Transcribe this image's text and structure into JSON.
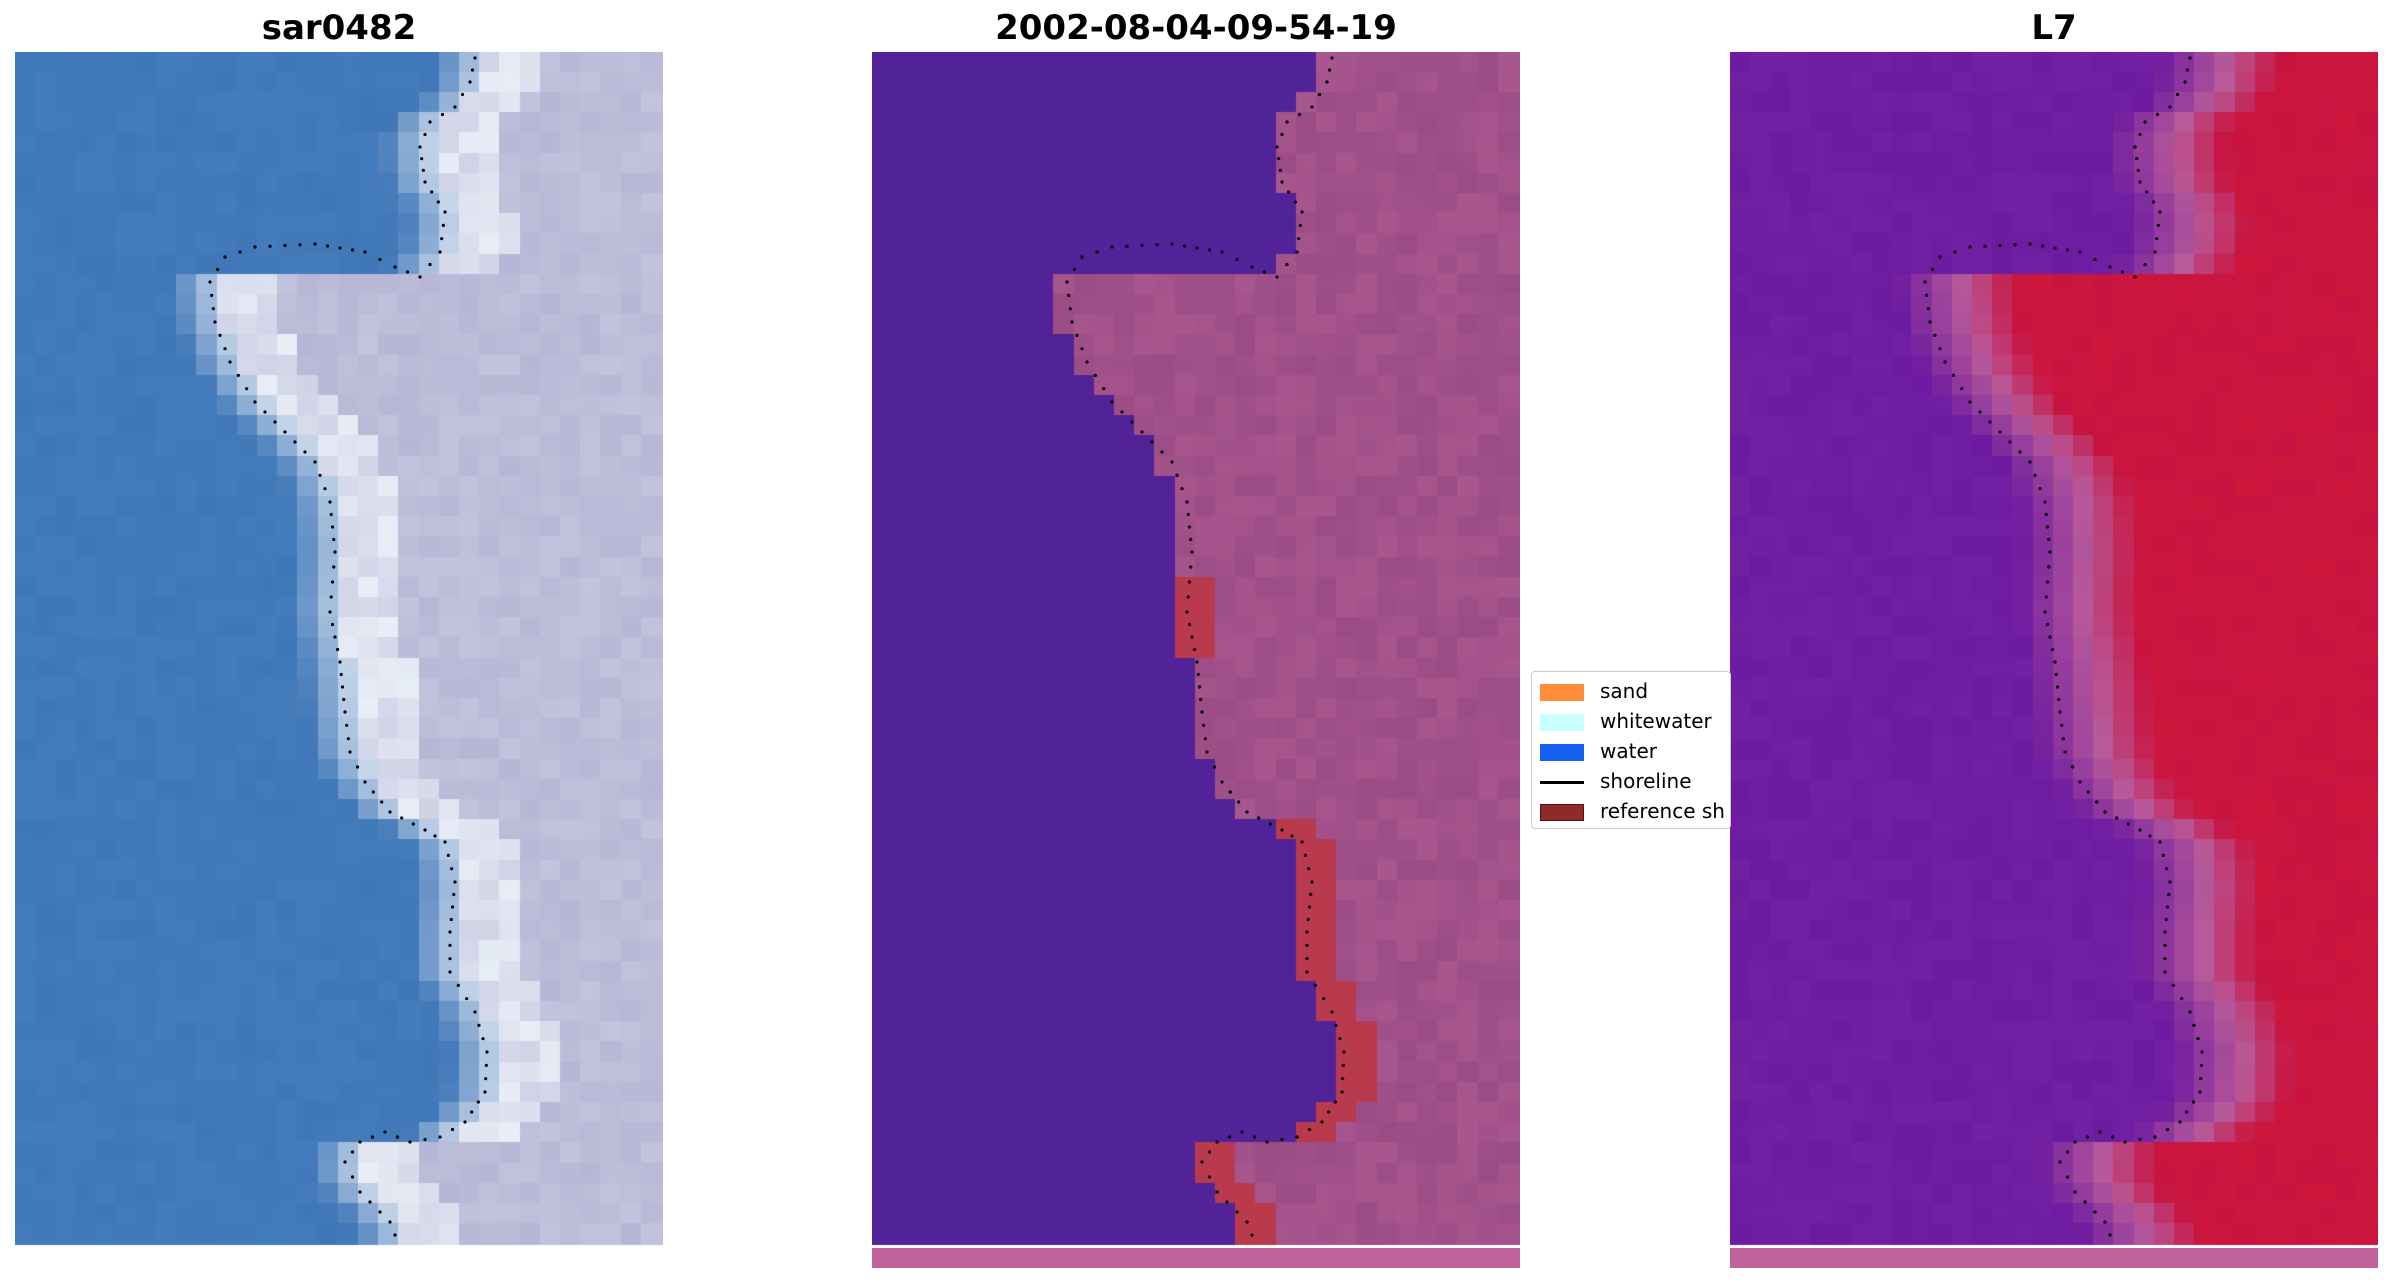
{
  "panels": [
    {
      "title": "sar0482"
    },
    {
      "title": "2002-08-04-09-54-19"
    },
    {
      "title": "L7"
    }
  ],
  "legend": {
    "items": [
      {
        "label": "sand",
        "color": "#ff8c3b",
        "kind": "patch"
      },
      {
        "label": "whitewater",
        "color": "#c8ffff",
        "kind": "patch"
      },
      {
        "label": "water",
        "color": "#1560f0",
        "kind": "patch"
      },
      {
        "label": "shoreline",
        "color": "#000000",
        "kind": "line"
      },
      {
        "label": "reference sh",
        "color": "#8e2a2a",
        "kind": "patch"
      }
    ]
  },
  "colors": {
    "rgb_water": "#3f77b8",
    "rgb_whitewater": "#e8eef6",
    "rgb_land": "#b8b6d6",
    "class_water": "#522398",
    "class_land": "#a8568e",
    "class_reference": "#b83a4c",
    "index_water": "#6c1aa0",
    "index_land": "#c81440",
    "index_transition": "#b85a9a",
    "bottom_band": "#c0619a"
  }
}
